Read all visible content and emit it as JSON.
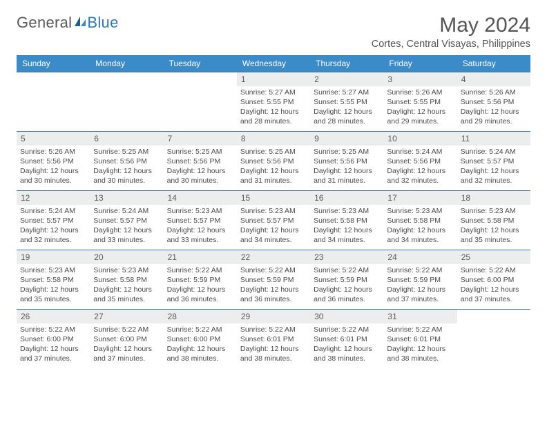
{
  "logo": {
    "part1": "General",
    "part2": "Blue"
  },
  "header": {
    "monthTitle": "May 2024",
    "location": "Cortes, Central Visayas, Philippines"
  },
  "colors": {
    "headerBg": "#3b8bc8",
    "headerText": "#ffffff",
    "rowBorder": "#3874a8",
    "dayBarBg": "#eceded",
    "bodyText": "#4a4a4a",
    "logoBlue": "#2a7ab8"
  },
  "dayNames": [
    "Sunday",
    "Monday",
    "Tuesday",
    "Wednesday",
    "Thursday",
    "Friday",
    "Saturday"
  ],
  "weeks": [
    [
      {
        "num": "",
        "lines": []
      },
      {
        "num": "",
        "lines": []
      },
      {
        "num": "",
        "lines": []
      },
      {
        "num": "1",
        "lines": [
          "Sunrise: 5:27 AM",
          "Sunset: 5:55 PM",
          "Daylight: 12 hours",
          "and 28 minutes."
        ]
      },
      {
        "num": "2",
        "lines": [
          "Sunrise: 5:27 AM",
          "Sunset: 5:55 PM",
          "Daylight: 12 hours",
          "and 28 minutes."
        ]
      },
      {
        "num": "3",
        "lines": [
          "Sunrise: 5:26 AM",
          "Sunset: 5:55 PM",
          "Daylight: 12 hours",
          "and 29 minutes."
        ]
      },
      {
        "num": "4",
        "lines": [
          "Sunrise: 5:26 AM",
          "Sunset: 5:56 PM",
          "Daylight: 12 hours",
          "and 29 minutes."
        ]
      }
    ],
    [
      {
        "num": "5",
        "lines": [
          "Sunrise: 5:26 AM",
          "Sunset: 5:56 PM",
          "Daylight: 12 hours",
          "and 30 minutes."
        ]
      },
      {
        "num": "6",
        "lines": [
          "Sunrise: 5:25 AM",
          "Sunset: 5:56 PM",
          "Daylight: 12 hours",
          "and 30 minutes."
        ]
      },
      {
        "num": "7",
        "lines": [
          "Sunrise: 5:25 AM",
          "Sunset: 5:56 PM",
          "Daylight: 12 hours",
          "and 30 minutes."
        ]
      },
      {
        "num": "8",
        "lines": [
          "Sunrise: 5:25 AM",
          "Sunset: 5:56 PM",
          "Daylight: 12 hours",
          "and 31 minutes."
        ]
      },
      {
        "num": "9",
        "lines": [
          "Sunrise: 5:25 AM",
          "Sunset: 5:56 PM",
          "Daylight: 12 hours",
          "and 31 minutes."
        ]
      },
      {
        "num": "10",
        "lines": [
          "Sunrise: 5:24 AM",
          "Sunset: 5:56 PM",
          "Daylight: 12 hours",
          "and 32 minutes."
        ]
      },
      {
        "num": "11",
        "lines": [
          "Sunrise: 5:24 AM",
          "Sunset: 5:57 PM",
          "Daylight: 12 hours",
          "and 32 minutes."
        ]
      }
    ],
    [
      {
        "num": "12",
        "lines": [
          "Sunrise: 5:24 AM",
          "Sunset: 5:57 PM",
          "Daylight: 12 hours",
          "and 32 minutes."
        ]
      },
      {
        "num": "13",
        "lines": [
          "Sunrise: 5:24 AM",
          "Sunset: 5:57 PM",
          "Daylight: 12 hours",
          "and 33 minutes."
        ]
      },
      {
        "num": "14",
        "lines": [
          "Sunrise: 5:23 AM",
          "Sunset: 5:57 PM",
          "Daylight: 12 hours",
          "and 33 minutes."
        ]
      },
      {
        "num": "15",
        "lines": [
          "Sunrise: 5:23 AM",
          "Sunset: 5:57 PM",
          "Daylight: 12 hours",
          "and 34 minutes."
        ]
      },
      {
        "num": "16",
        "lines": [
          "Sunrise: 5:23 AM",
          "Sunset: 5:58 PM",
          "Daylight: 12 hours",
          "and 34 minutes."
        ]
      },
      {
        "num": "17",
        "lines": [
          "Sunrise: 5:23 AM",
          "Sunset: 5:58 PM",
          "Daylight: 12 hours",
          "and 34 minutes."
        ]
      },
      {
        "num": "18",
        "lines": [
          "Sunrise: 5:23 AM",
          "Sunset: 5:58 PM",
          "Daylight: 12 hours",
          "and 35 minutes."
        ]
      }
    ],
    [
      {
        "num": "19",
        "lines": [
          "Sunrise: 5:23 AM",
          "Sunset: 5:58 PM",
          "Daylight: 12 hours",
          "and 35 minutes."
        ]
      },
      {
        "num": "20",
        "lines": [
          "Sunrise: 5:23 AM",
          "Sunset: 5:58 PM",
          "Daylight: 12 hours",
          "and 35 minutes."
        ]
      },
      {
        "num": "21",
        "lines": [
          "Sunrise: 5:22 AM",
          "Sunset: 5:59 PM",
          "Daylight: 12 hours",
          "and 36 minutes."
        ]
      },
      {
        "num": "22",
        "lines": [
          "Sunrise: 5:22 AM",
          "Sunset: 5:59 PM",
          "Daylight: 12 hours",
          "and 36 minutes."
        ]
      },
      {
        "num": "23",
        "lines": [
          "Sunrise: 5:22 AM",
          "Sunset: 5:59 PM",
          "Daylight: 12 hours",
          "and 36 minutes."
        ]
      },
      {
        "num": "24",
        "lines": [
          "Sunrise: 5:22 AM",
          "Sunset: 5:59 PM",
          "Daylight: 12 hours",
          "and 37 minutes."
        ]
      },
      {
        "num": "25",
        "lines": [
          "Sunrise: 5:22 AM",
          "Sunset: 6:00 PM",
          "Daylight: 12 hours",
          "and 37 minutes."
        ]
      }
    ],
    [
      {
        "num": "26",
        "lines": [
          "Sunrise: 5:22 AM",
          "Sunset: 6:00 PM",
          "Daylight: 12 hours",
          "and 37 minutes."
        ]
      },
      {
        "num": "27",
        "lines": [
          "Sunrise: 5:22 AM",
          "Sunset: 6:00 PM",
          "Daylight: 12 hours",
          "and 37 minutes."
        ]
      },
      {
        "num": "28",
        "lines": [
          "Sunrise: 5:22 AM",
          "Sunset: 6:00 PM",
          "Daylight: 12 hours",
          "and 38 minutes."
        ]
      },
      {
        "num": "29",
        "lines": [
          "Sunrise: 5:22 AM",
          "Sunset: 6:01 PM",
          "Daylight: 12 hours",
          "and 38 minutes."
        ]
      },
      {
        "num": "30",
        "lines": [
          "Sunrise: 5:22 AM",
          "Sunset: 6:01 PM",
          "Daylight: 12 hours",
          "and 38 minutes."
        ]
      },
      {
        "num": "31",
        "lines": [
          "Sunrise: 5:22 AM",
          "Sunset: 6:01 PM",
          "Daylight: 12 hours",
          "and 38 minutes."
        ]
      },
      {
        "num": "",
        "lines": []
      }
    ]
  ]
}
